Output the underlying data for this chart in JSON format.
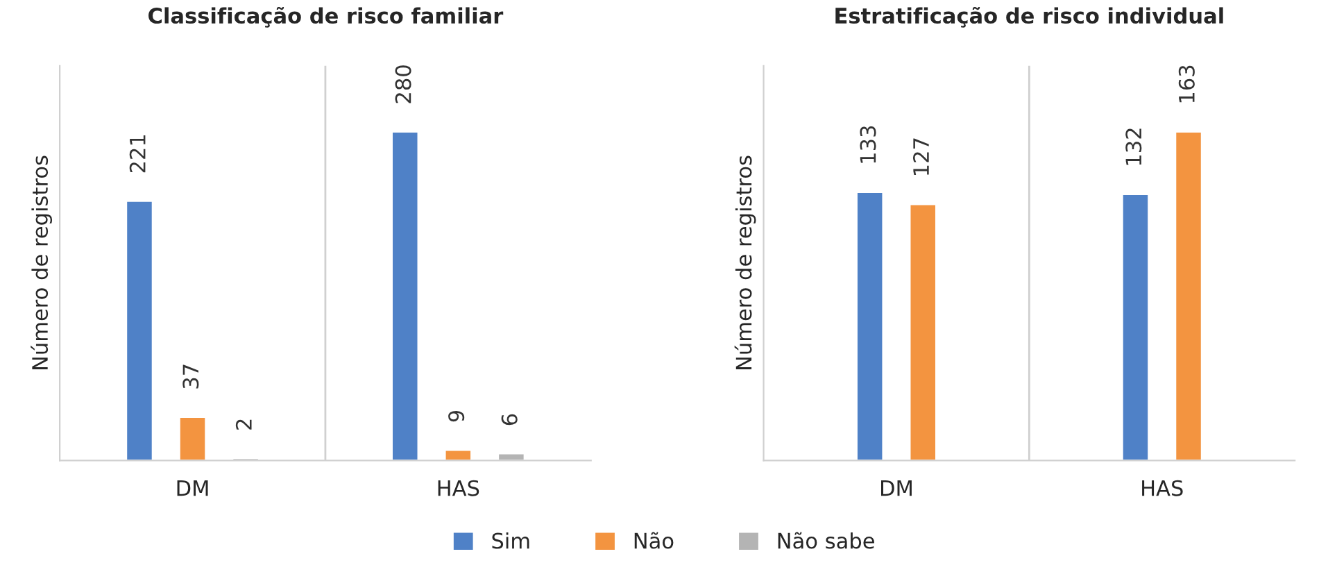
{
  "chart_data": [
    {
      "type": "bar",
      "title": "Classificação de risco familiar",
      "ylabel": "Número de registros",
      "categories": [
        "DM",
        "HAS"
      ],
      "series": [
        {
          "name": "Sim",
          "color": "#4f81c7",
          "values": [
            221,
            280
          ]
        },
        {
          "name": "Não",
          "color": "#f39440",
          "values": [
            37,
            9
          ]
        },
        {
          "name": "Não sabe",
          "color": "#b4b4b4",
          "values": [
            2,
            6
          ]
        }
      ],
      "data_labels": true,
      "legend": "bottom"
    },
    {
      "type": "bar",
      "title": "Estratificação de risco individual",
      "ylabel": "Número de registros",
      "categories": [
        "DM",
        "HAS"
      ],
      "series": [
        {
          "name": "Sim",
          "color": "#4f81c7",
          "values": [
            133,
            132
          ]
        },
        {
          "name": "Não",
          "color": "#f39440",
          "values": [
            127,
            163
          ]
        }
      ],
      "data_labels": true
    }
  ]
}
